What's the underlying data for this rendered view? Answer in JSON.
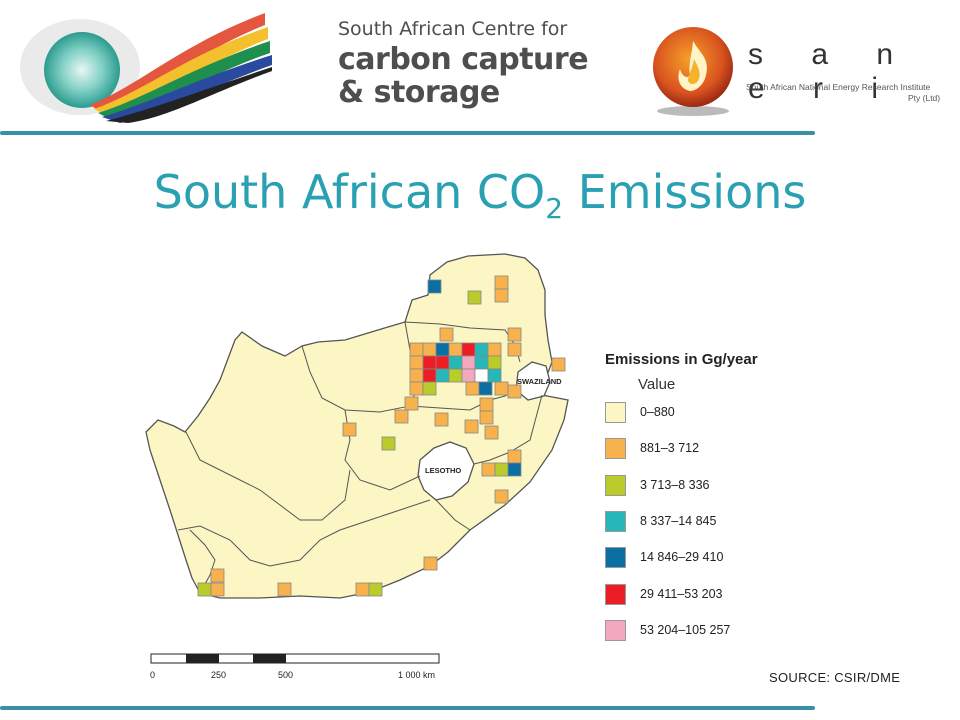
{
  "header": {
    "left_logo": "south-africa-flag-swoosh-logo",
    "center_logo_lines": [
      "South African Centre for",
      "carbon capture",
      "& storage"
    ],
    "right_logo": {
      "name": "s a n e r i",
      "subtitle": "South African National Energy Research Institute",
      "subtitle2": "Pty (Ltd)"
    }
  },
  "title": {
    "pre": "South African CO",
    "sub": "2",
    "post": " Emissions"
  },
  "map": {
    "labels": {
      "swaziland": "SWAZILAND",
      "lesotho": "LESOTHO"
    },
    "land_color": "#fbf6c4",
    "border_color": "#555555"
  },
  "legend": {
    "title": "Emissions in Gg/year",
    "subtitle": "Value",
    "items": [
      {
        "label": "0–880",
        "color": "#fbf6c4"
      },
      {
        "label": "881–3 712",
        "color": "#f7b24e"
      },
      {
        "label": "3 713–8 336",
        "color": "#b9cc2c"
      },
      {
        "label": "8 337–14 845",
        "color": "#27b7b8"
      },
      {
        "label": "14 846–29 410",
        "color": "#0b6fa4"
      },
      {
        "label": "29 411–53 203",
        "color": "#ec1d24"
      },
      {
        "label": "53 204–105 257",
        "color": "#f4a8bd"
      }
    ]
  },
  "scale": {
    "ticks": [
      "0",
      "250",
      "500",
      "1 000 km"
    ]
  },
  "source": "SOURCE: CSIR/DME",
  "colors": {
    "accent": "#2aa0b3",
    "rule": "#3a8fa8"
  }
}
